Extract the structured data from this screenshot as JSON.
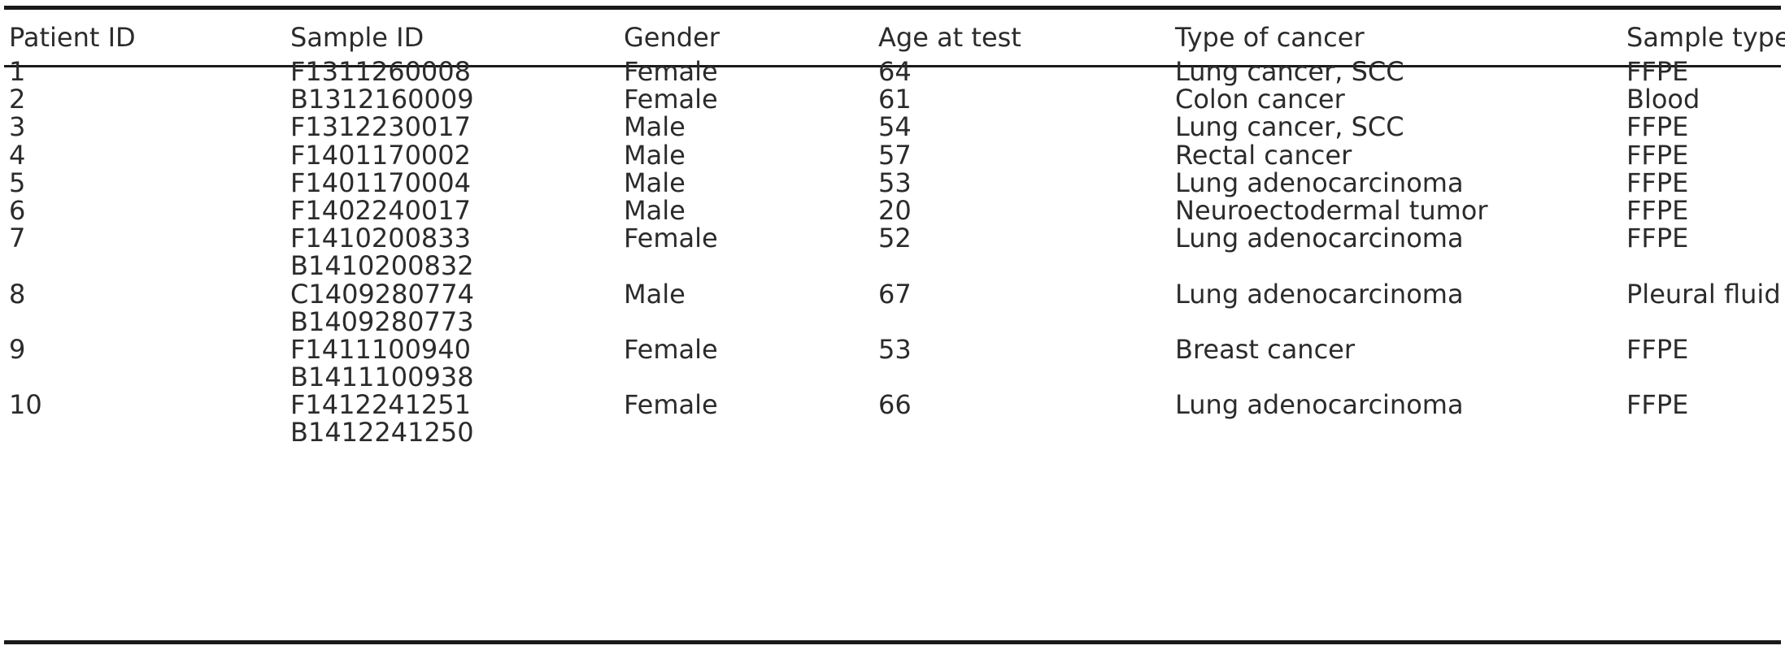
{
  "table": {
    "headers": [
      "Patient ID",
      "Sample ID",
      "Gender",
      "Age at test",
      "Type of cancer",
      "Sample type"
    ],
    "rows": [
      {
        "patient_id": "1",
        "sample_ids": [
          "F1311260008"
        ],
        "gender": "Female",
        "age": "64",
        "cancer_type": "Lung cancer, SCC",
        "sample_type": "FFPE"
      },
      {
        "patient_id": "2",
        "sample_ids": [
          "B1312160009"
        ],
        "gender": "Female",
        "age": "61",
        "cancer_type": "Colon cancer",
        "sample_type": "Blood"
      },
      {
        "patient_id": "3",
        "sample_ids": [
          "F1312230017"
        ],
        "gender": "Male",
        "age": "54",
        "cancer_type": "Lung cancer, SCC",
        "sample_type": "FFPE"
      },
      {
        "patient_id": "4",
        "sample_ids": [
          "F1401170002"
        ],
        "gender": "Male",
        "age": "57",
        "cancer_type": "Rectal cancer",
        "sample_type": "FFPE"
      },
      {
        "patient_id": "5",
        "sample_ids": [
          "F1401170004"
        ],
        "gender": "Male",
        "age": "53",
        "cancer_type": "Lung adenocarcinoma",
        "sample_type": "FFPE"
      },
      {
        "patient_id": "6",
        "sample_ids": [
          "F1402240017"
        ],
        "gender": "Male",
        "age": "20",
        "cancer_type": "Neuroectodermal tumor",
        "sample_type": "FFPE"
      },
      {
        "patient_id": "7",
        "sample_ids": [
          "F1410200833",
          "B1410200832"
        ],
        "gender": "Female",
        "age": "52",
        "cancer_type": "Lung adenocarcinoma",
        "sample_type": "FFPE"
      },
      {
        "patient_id": "8",
        "sample_ids": [
          "C1409280774",
          "B1409280773"
        ],
        "gender": "Male",
        "age": "67",
        "cancer_type": "Lung adenocarcinoma",
        "sample_type": "Pleural fluid"
      },
      {
        "patient_id": "9",
        "sample_ids": [
          "F1411100940",
          "B1411100938"
        ],
        "gender": "Female",
        "age": "53",
        "cancer_type": "Breast cancer",
        "sample_type": "FFPE"
      },
      {
        "patient_id": "10",
        "sample_ids": [
          "F1412241251",
          "B1412241250"
        ],
        "gender": "Female",
        "age": "66",
        "cancer_type": "Lung adenocarcinoma",
        "sample_type": "FFPE"
      }
    ]
  }
}
